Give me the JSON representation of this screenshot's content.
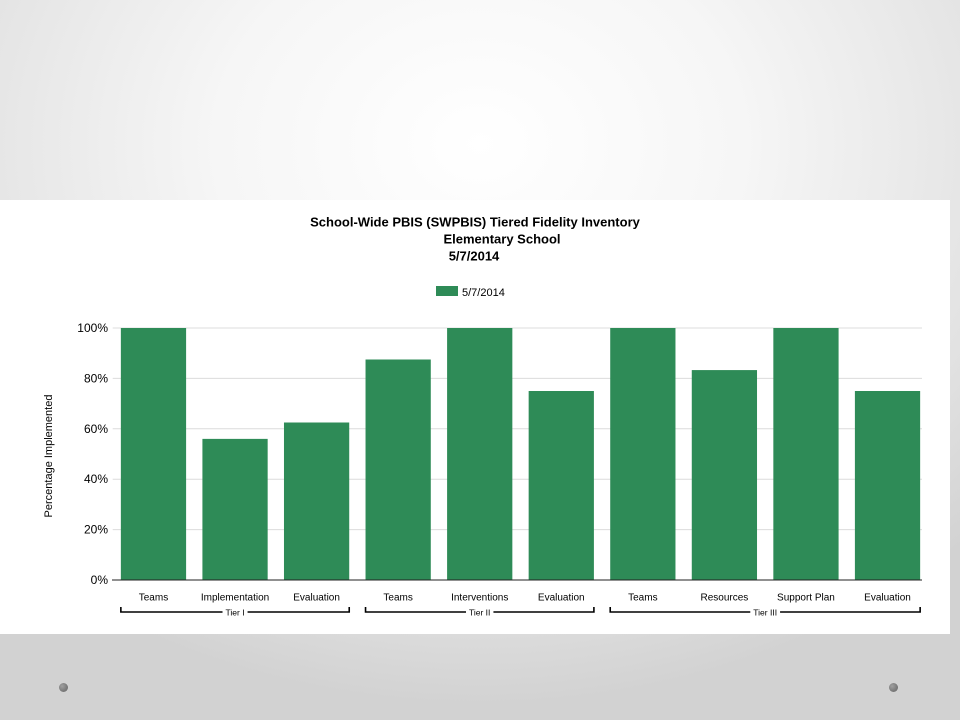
{
  "chart_data": {
    "type": "bar",
    "title": "School-Wide PBIS (SWPBIS) Tiered Fidelity Inventory",
    "subtitle": "Elementary School",
    "date_line": "5/7/2014",
    "xlabel": "",
    "ylabel": "Percentage Implemented",
    "ylim": [
      0,
      100
    ],
    "yticks": [
      {
        "value": 0,
        "label": "0%"
      },
      {
        "value": 20,
        "label": "20%"
      },
      {
        "value": 40,
        "label": "40%"
      },
      {
        "value": 60,
        "label": "60%"
      },
      {
        "value": 80,
        "label": "80%"
      },
      {
        "value": 100,
        "label": "100%"
      }
    ],
    "grid": true,
    "legend": {
      "position": "top-center"
    },
    "groups": [
      {
        "label": "Tier I",
        "categories": [
          "Teams",
          "Implementation",
          "Evaluation"
        ]
      },
      {
        "label": "Tier II",
        "categories": [
          "Teams",
          "Interventions",
          "Evaluation"
        ]
      },
      {
        "label": "Tier III",
        "categories": [
          "Teams",
          "Resources",
          "Support Plan",
          "Evaluation"
        ]
      }
    ],
    "series": [
      {
        "name": "5/7/2014",
        "color": "#2e8b57",
        "values": [
          100,
          56,
          62.5,
          87.5,
          100,
          75,
          100,
          83.3,
          100,
          75
        ]
      }
    ]
  }
}
